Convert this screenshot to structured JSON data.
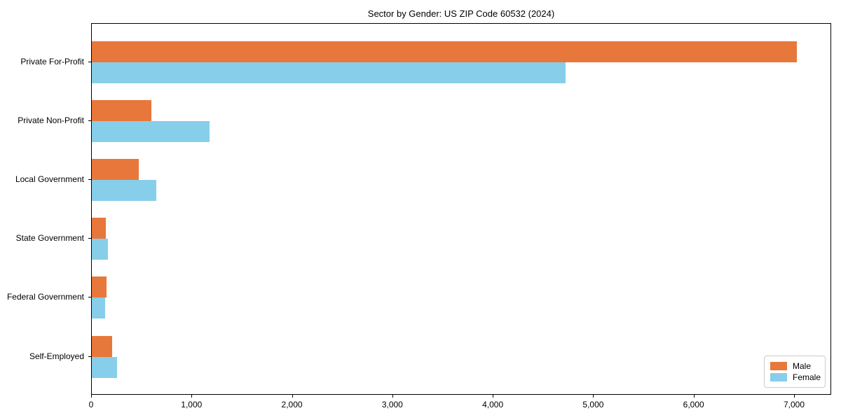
{
  "chart_data": {
    "type": "bar",
    "orientation": "horizontal",
    "title": "Sector by Gender: US ZIP Code 60532 (2024)",
    "categories": [
      "Private For-Profit",
      "Private Non-Profit",
      "Local Government",
      "State Government",
      "Federal Government",
      "Self-Employed"
    ],
    "series": [
      {
        "name": "Male",
        "color": "#e8773b",
        "values": [
          7020,
          590,
          465,
          137,
          148,
          205
        ]
      },
      {
        "name": "Female",
        "color": "#87ceeb",
        "values": [
          4715,
          1175,
          645,
          160,
          132,
          250
        ]
      }
    ],
    "xlabel": "",
    "ylabel": "",
    "xlim": [
      0,
      7370
    ],
    "x_tick_values": [
      0,
      1000,
      2000,
      3000,
      4000,
      5000,
      6000,
      7000
    ],
    "x_tick_labels": [
      "0",
      "1,000",
      "2,000",
      "3,000",
      "4,000",
      "5,000",
      "6,000",
      "7,000"
    ],
    "grid": false,
    "legend_position": "lower right"
  }
}
